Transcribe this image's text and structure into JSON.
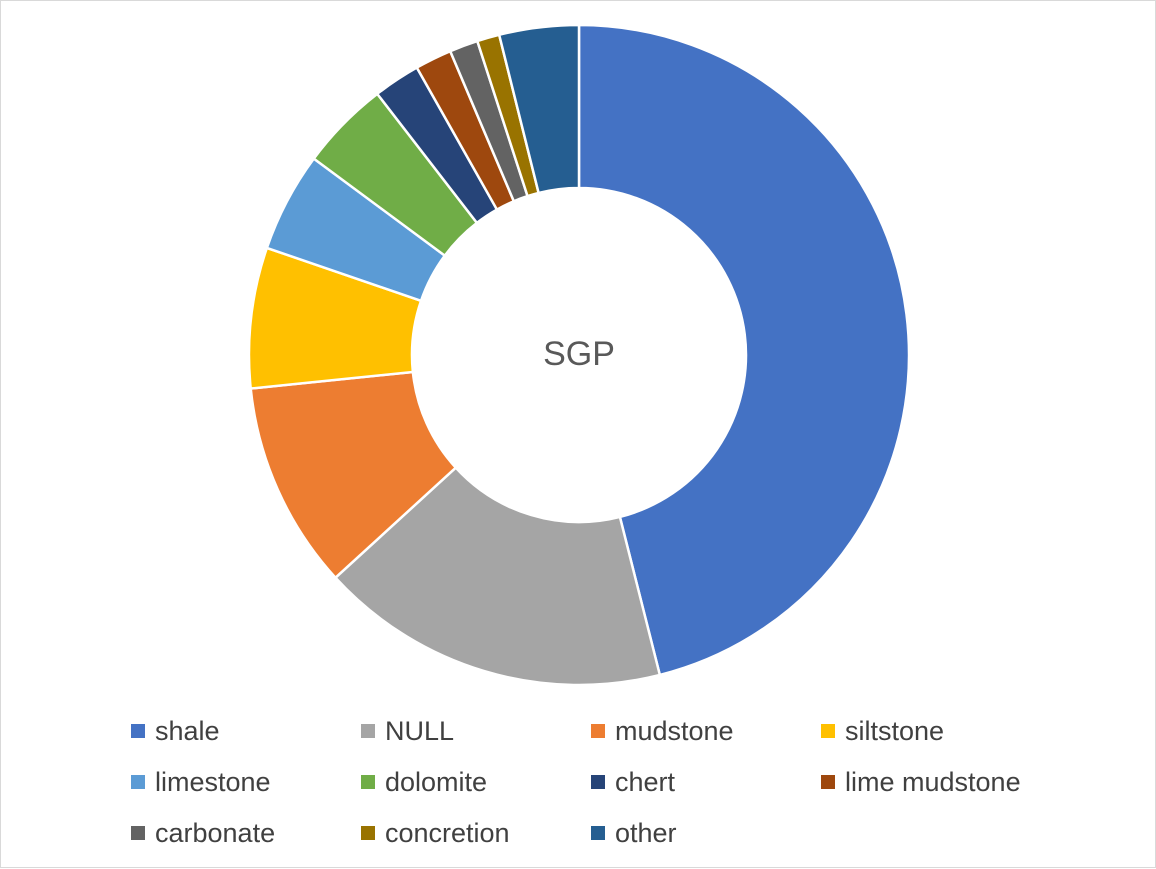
{
  "chart_data": {
    "type": "pie",
    "title": "SGP",
    "categories": [
      "shale",
      "NULL",
      "mudstone",
      "siltstone",
      "limestone",
      "dolomite",
      "chert",
      "lime mudstone",
      "carbonate",
      "concretion",
      "other"
    ],
    "values": [
      46.2,
      17.2,
      10.2,
      6.9,
      4.9,
      4.4,
      2.3,
      1.8,
      1.4,
      1.1,
      3.9
    ],
    "colors": [
      "#4472C4",
      "#A5A5A5",
      "#ED7D31",
      "#FFC000",
      "#5B9BD5",
      "#70AD47",
      "#264478",
      "#9E480E",
      "#636363",
      "#997300",
      "#255E91"
    ],
    "legend": "bottom"
  }
}
